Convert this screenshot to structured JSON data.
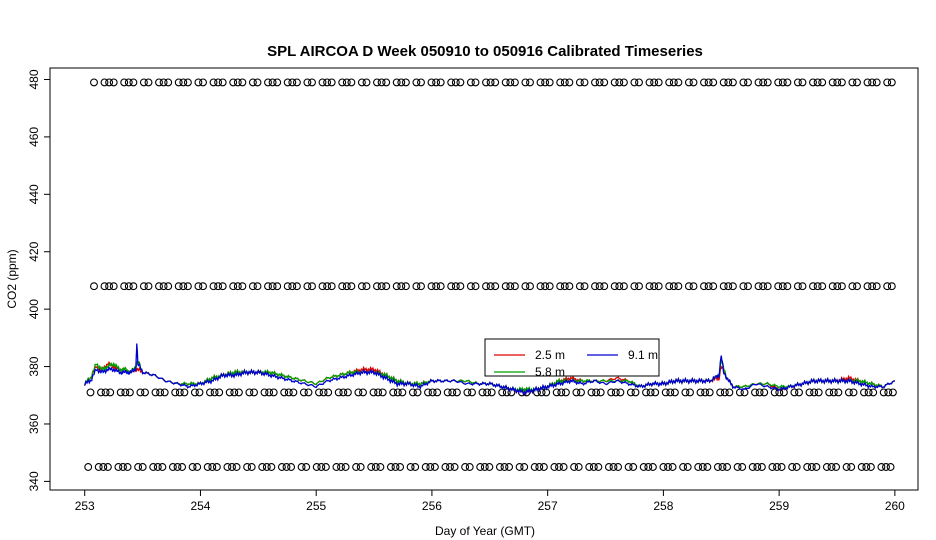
{
  "chart_data": {
    "type": "line",
    "title": "SPL AIRCOA D  Week 050910 to 050916  Calibrated Timeseries",
    "xlabel": "Day of Year (GMT)",
    "ylabel": "CO2 (ppm)",
    "xlim": [
      252.7,
      260.2
    ],
    "ylim": [
      337,
      484
    ],
    "xticks": [
      253,
      254,
      255,
      256,
      257,
      258,
      259,
      260
    ],
    "yticks": [
      340,
      360,
      380,
      400,
      420,
      440,
      460,
      480
    ],
    "grid": false,
    "legend_position": "center-right",
    "series": [
      {
        "name": "2.5 m",
        "color": "#e00000",
        "x": [
          253.0,
          253.05,
          253.1,
          253.15,
          253.2,
          253.25,
          253.3,
          253.35,
          253.4,
          253.44,
          253.46,
          253.5,
          253.6,
          253.7,
          253.8,
          253.9,
          254.0,
          254.1,
          254.2,
          254.3,
          254.4,
          254.5,
          254.6,
          254.7,
          254.8,
          254.9,
          255.0,
          255.1,
          255.2,
          255.3,
          255.4,
          255.5,
          255.6,
          255.7,
          255.8,
          255.9,
          256.0,
          256.1,
          256.2,
          256.3,
          256.4,
          256.5,
          256.6,
          256.7,
          256.8,
          256.9,
          257.0,
          257.1,
          257.2,
          257.3,
          257.4,
          257.5,
          257.6,
          257.7,
          257.8,
          257.9,
          258.0,
          258.1,
          258.2,
          258.3,
          258.4,
          258.48,
          258.5,
          258.55,
          258.6,
          258.7,
          258.8,
          258.9,
          259.0,
          259.1,
          259.2,
          259.3,
          259.4,
          259.5,
          259.6,
          259.7,
          259.8,
          259.9,
          260.0
        ],
        "values": [
          374,
          376,
          380,
          379,
          381,
          380,
          379,
          379,
          378,
          379,
          379,
          378,
          377,
          375,
          374,
          374,
          374,
          376,
          377,
          378,
          378,
          378,
          378,
          377,
          376,
          375,
          374,
          376,
          377,
          378,
          379,
          379,
          377,
          375,
          374,
          374,
          375,
          375,
          375,
          375,
          374,
          374,
          373,
          372,
          371,
          372,
          373,
          375,
          376,
          375,
          375,
          375,
          376,
          375,
          373,
          374,
          374,
          375,
          375,
          375,
          375,
          376,
          380,
          376,
          373,
          373,
          374,
          374,
          372,
          373,
          374,
          375,
          375,
          375,
          376,
          375,
          374,
          373,
          375
        ]
      },
      {
        "name": "5.8 m",
        "color": "#00a000",
        "x": [
          253.0,
          253.05,
          253.1,
          253.15,
          253.2,
          253.25,
          253.3,
          253.35,
          253.4,
          253.44,
          253.46,
          253.5,
          253.6,
          253.7,
          253.8,
          253.9,
          254.0,
          254.1,
          254.2,
          254.3,
          254.4,
          254.5,
          254.6,
          254.7,
          254.8,
          254.9,
          255.0,
          255.1,
          255.2,
          255.3,
          255.4,
          255.5,
          255.6,
          255.7,
          255.8,
          255.9,
          256.0,
          256.1,
          256.2,
          256.3,
          256.4,
          256.5,
          256.6,
          256.7,
          256.8,
          256.9,
          257.0,
          257.1,
          257.2,
          257.3,
          257.4,
          257.5,
          257.6,
          257.7,
          257.8,
          257.9,
          258.0,
          258.1,
          258.2,
          258.3,
          258.4,
          258.48,
          258.5,
          258.55,
          258.6,
          258.7,
          258.8,
          258.9,
          259.0,
          259.1,
          259.2,
          259.3,
          259.4,
          259.5,
          259.6,
          259.7,
          259.8,
          259.9,
          260.0
        ],
        "values": [
          374,
          376,
          381,
          379,
          380,
          381,
          379,
          379,
          378,
          380,
          382,
          378,
          377,
          375,
          374,
          374,
          374,
          376,
          377,
          378,
          378,
          378,
          378,
          377,
          376,
          375,
          374,
          376,
          377,
          378,
          378,
          378,
          377,
          375,
          374,
          374,
          375,
          375,
          375,
          375,
          374,
          374,
          373,
          372,
          372,
          372,
          373,
          375,
          375,
          375,
          375,
          375,
          375,
          375,
          373,
          374,
          374,
          375,
          375,
          375,
          375,
          377,
          382,
          376,
          373,
          373,
          374,
          374,
          373,
          373,
          374,
          375,
          375,
          375,
          375,
          375,
          374,
          373,
          375
        ]
      },
      {
        "name": "9.1 m",
        "color": "#0000d0",
        "x": [
          253.0,
          253.05,
          253.1,
          253.15,
          253.2,
          253.25,
          253.3,
          253.35,
          253.4,
          253.44,
          253.45,
          253.46,
          253.5,
          253.6,
          253.7,
          253.8,
          253.9,
          254.0,
          254.1,
          254.2,
          254.3,
          254.4,
          254.5,
          254.6,
          254.7,
          254.8,
          254.9,
          255.0,
          255.1,
          255.2,
          255.3,
          255.4,
          255.5,
          255.6,
          255.7,
          255.8,
          255.9,
          256.0,
          256.1,
          256.2,
          256.3,
          256.4,
          256.5,
          256.6,
          256.7,
          256.8,
          256.9,
          257.0,
          257.1,
          257.2,
          257.3,
          257.4,
          257.5,
          257.6,
          257.7,
          257.8,
          257.9,
          258.0,
          258.1,
          258.2,
          258.3,
          258.4,
          258.48,
          258.5,
          258.52,
          258.55,
          258.6,
          258.7,
          258.8,
          258.9,
          259.0,
          259.1,
          259.2,
          259.3,
          259.4,
          259.5,
          259.6,
          259.7,
          259.8,
          259.9,
          260.0
        ],
        "values": [
          374,
          375,
          379,
          378,
          379,
          379,
          378,
          378,
          378,
          379,
          388,
          381,
          378,
          377,
          375,
          374,
          373,
          374,
          375,
          377,
          377,
          378,
          378,
          377,
          376,
          375,
          374,
          373,
          375,
          376,
          377,
          378,
          378,
          376,
          374,
          374,
          373,
          375,
          375,
          375,
          374,
          374,
          374,
          373,
          372,
          371,
          372,
          373,
          374,
          375,
          374,
          375,
          374,
          375,
          374,
          373,
          374,
          374,
          375,
          375,
          375,
          375,
          377,
          384,
          378,
          376,
          373,
          372,
          374,
          373,
          372,
          373,
          374,
          375,
          375,
          375,
          375,
          374,
          373,
          373,
          375
        ]
      }
    ],
    "marker_rows": [
      {
        "y": 479,
        "x_start": 253.08,
        "x_end": 260.0
      },
      {
        "y": 408,
        "x_start": 253.08,
        "x_end": 260.0
      },
      {
        "y": 371,
        "x_start": 253.05,
        "x_end": 260.0
      },
      {
        "y": 345,
        "x_start": 253.03,
        "x_end": 260.0
      }
    ]
  }
}
